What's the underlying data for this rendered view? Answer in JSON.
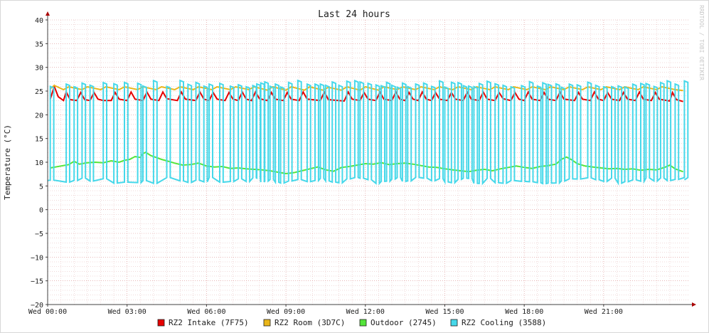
{
  "chart_data": {
    "type": "line",
    "title": "Last 24 hours",
    "ylabel": "Temperature (°C)",
    "xlabel": "",
    "watermark": "RRDTOOL / TOBI OETIKER",
    "ylim": [
      -20,
      40
    ],
    "xlim_hours": [
      0,
      24.2
    ],
    "y_ticks": [
      -20,
      -15,
      -10,
      -5,
      0,
      5,
      10,
      15,
      20,
      25,
      30,
      35,
      40
    ],
    "y_tick_labels": [
      "−20",
      "−15",
      "−10",
      "−5",
      "0",
      "5",
      "10",
      "15",
      "20",
      "25",
      "30",
      "35",
      "40"
    ],
    "x_ticks_hours": [
      0,
      3,
      6,
      9,
      12,
      15,
      18,
      21
    ],
    "x_tick_labels": [
      "Wed 00:00",
      "Wed 03:00",
      "Wed 06:00",
      "Wed 09:00",
      "Wed 12:00",
      "Wed 15:00",
      "Wed 18:00",
      "Wed 21:00"
    ],
    "grid": true,
    "legend_position": "bottom",
    "colors": {
      "grid_minor": "#e2b4b4",
      "grid_major": "#d98c8c",
      "axis": "#404040",
      "arrow": "#aa0000",
      "frame": "#d8d8d8",
      "watermark": "#c8c8c8"
    },
    "series": [
      {
        "name": "RZ2 Intake (7F75)",
        "color": "#e60000",
        "points": [
          [
            0.1,
            23.3
          ],
          [
            0.25,
            26
          ],
          [
            0.4,
            23.8
          ],
          [
            0.6,
            23.0
          ],
          [
            0.7,
            24.8
          ],
          [
            0.85,
            23.2
          ],
          [
            1.1,
            23.0
          ],
          [
            1.25,
            24.7
          ],
          [
            1.4,
            23.2
          ],
          [
            1.6,
            23.0
          ],
          [
            1.75,
            24.7
          ],
          [
            1.9,
            23.3
          ],
          [
            2.1,
            23.0
          ],
          [
            2.4,
            23.0
          ],
          [
            2.55,
            24.7
          ],
          [
            2.7,
            23.3
          ],
          [
            3.0,
            23.0
          ],
          [
            3.15,
            24.8
          ],
          [
            3.3,
            23.3
          ],
          [
            3.6,
            23.0
          ],
          [
            3.75,
            24.8
          ],
          [
            3.9,
            23.3
          ],
          [
            4.2,
            23.0
          ],
          [
            4.35,
            24.8
          ],
          [
            4.5,
            23.4
          ],
          [
            4.9,
            23.0
          ],
          [
            5.05,
            24.8
          ],
          [
            5.2,
            23.3
          ],
          [
            5.6,
            23.0
          ],
          [
            5.75,
            24.8
          ],
          [
            5.9,
            23.3
          ],
          [
            6.1,
            23.0
          ],
          [
            6.25,
            24.7
          ],
          [
            6.4,
            23.3
          ],
          [
            6.7,
            23.0
          ],
          [
            6.85,
            24.7
          ],
          [
            7.0,
            23.3
          ],
          [
            7.2,
            23.0
          ],
          [
            7.35,
            24.8
          ],
          [
            7.5,
            23.3
          ],
          [
            7.7,
            23.0
          ],
          [
            7.85,
            24.8
          ],
          [
            8.0,
            23.4
          ],
          [
            8.3,
            23.0
          ],
          [
            8.45,
            24.7
          ],
          [
            8.6,
            23.3
          ],
          [
            8.9,
            23.0
          ],
          [
            9.05,
            24.7
          ],
          [
            9.2,
            23.3
          ],
          [
            9.5,
            23.0
          ],
          [
            9.65,
            24.8
          ],
          [
            9.8,
            23.3
          ],
          [
            10.3,
            23.0
          ],
          [
            10.45,
            24.8
          ],
          [
            10.6,
            23.2
          ],
          [
            11.2,
            22.9
          ],
          [
            11.35,
            24.8
          ],
          [
            11.5,
            23.3
          ],
          [
            11.8,
            23.0
          ],
          [
            11.95,
            24.7
          ],
          [
            12.1,
            23.3
          ],
          [
            12.4,
            23.0
          ],
          [
            12.55,
            24.8
          ],
          [
            12.7,
            23.3
          ],
          [
            13.0,
            23.0
          ],
          [
            13.15,
            24.8
          ],
          [
            13.3,
            23.3
          ],
          [
            13.5,
            23.0
          ],
          [
            13.65,
            24.7
          ],
          [
            13.8,
            23.3
          ],
          [
            14.0,
            23.0
          ],
          [
            14.15,
            24.8
          ],
          [
            14.3,
            23.3
          ],
          [
            14.5,
            23.0
          ],
          [
            14.65,
            24.7
          ],
          [
            14.8,
            23.3
          ],
          [
            15.1,
            23.0
          ],
          [
            15.25,
            24.7
          ],
          [
            15.4,
            23.3
          ],
          [
            15.7,
            23.0
          ],
          [
            15.85,
            24.8
          ],
          [
            16.0,
            23.3
          ],
          [
            16.3,
            23.0
          ],
          [
            16.45,
            24.8
          ],
          [
            16.6,
            23.3
          ],
          [
            16.9,
            23.0
          ],
          [
            17.05,
            24.7
          ],
          [
            17.2,
            23.4
          ],
          [
            17.5,
            23.0
          ],
          [
            17.65,
            24.7
          ],
          [
            17.8,
            23.3
          ],
          [
            18.0,
            23.0
          ],
          [
            18.15,
            24.8
          ],
          [
            18.3,
            23.3
          ],
          [
            18.6,
            23.0
          ],
          [
            18.75,
            24.7
          ],
          [
            18.9,
            23.3
          ],
          [
            19.2,
            23.0
          ],
          [
            19.35,
            24.8
          ],
          [
            19.5,
            23.3
          ],
          [
            19.9,
            23.0
          ],
          [
            20.05,
            24.7
          ],
          [
            20.2,
            23.3
          ],
          [
            20.5,
            23.0
          ],
          [
            20.65,
            24.8
          ],
          [
            20.8,
            23.3
          ],
          [
            21.0,
            23.0
          ],
          [
            21.15,
            24.7
          ],
          [
            21.3,
            23.3
          ],
          [
            21.6,
            23.0
          ],
          [
            21.75,
            24.7
          ],
          [
            21.9,
            23.3
          ],
          [
            22.2,
            23.0
          ],
          [
            22.35,
            24.8
          ],
          [
            22.5,
            23.3
          ],
          [
            22.8,
            23.0
          ],
          [
            22.95,
            24.7
          ],
          [
            23.1,
            23.3
          ],
          [
            23.5,
            22.9
          ],
          [
            23.6,
            24.7
          ],
          [
            23.75,
            23.2
          ],
          [
            24.0,
            22.8
          ]
        ]
      },
      {
        "name": "RZ2 Room (3D7C)",
        "color": "#eab619",
        "points": [
          [
            0.1,
            25.5
          ],
          [
            0.25,
            26.2
          ],
          [
            0.6,
            25.3
          ],
          [
            0.8,
            25.9
          ],
          [
            1.3,
            25.3
          ],
          [
            1.5,
            25.9
          ],
          [
            2.0,
            25.3
          ],
          [
            2.2,
            25.9
          ],
          [
            2.7,
            25.3
          ],
          [
            2.9,
            25.9
          ],
          [
            3.4,
            25.3
          ],
          [
            3.6,
            25.9
          ],
          [
            4.1,
            25.3
          ],
          [
            4.3,
            25.9
          ],
          [
            4.8,
            25.3
          ],
          [
            5.0,
            25.9
          ],
          [
            5.5,
            25.3
          ],
          [
            5.7,
            25.9
          ],
          [
            6.2,
            25.3
          ],
          [
            6.4,
            25.9
          ],
          [
            6.9,
            25.3
          ],
          [
            7.1,
            25.9
          ],
          [
            7.6,
            25.3
          ],
          [
            7.8,
            25.9
          ],
          [
            8.3,
            25.2
          ],
          [
            8.5,
            25.9
          ],
          [
            9.0,
            25.2
          ],
          [
            9.2,
            25.9
          ],
          [
            9.7,
            25.2
          ],
          [
            9.9,
            25.9
          ],
          [
            10.4,
            25.2
          ],
          [
            10.6,
            25.8
          ],
          [
            11.1,
            25.2
          ],
          [
            11.3,
            25.9
          ],
          [
            11.8,
            25.2
          ],
          [
            12.0,
            25.9
          ],
          [
            12.5,
            25.2
          ],
          [
            12.7,
            25.9
          ],
          [
            13.2,
            25.3
          ],
          [
            13.4,
            25.9
          ],
          [
            13.9,
            25.3
          ],
          [
            14.1,
            25.9
          ],
          [
            14.6,
            25.3
          ],
          [
            14.8,
            25.9
          ],
          [
            15.3,
            25.3
          ],
          [
            15.5,
            25.9
          ],
          [
            16.0,
            25.3
          ],
          [
            16.2,
            25.9
          ],
          [
            16.7,
            25.3
          ],
          [
            16.9,
            25.9
          ],
          [
            17.4,
            25.3
          ],
          [
            17.6,
            25.9
          ],
          [
            18.1,
            25.3
          ],
          [
            18.3,
            25.9
          ],
          [
            18.8,
            25.3
          ],
          [
            19.0,
            25.9
          ],
          [
            19.5,
            25.3
          ],
          [
            19.7,
            25.9
          ],
          [
            20.2,
            25.3
          ],
          [
            20.4,
            25.9
          ],
          [
            20.9,
            25.3
          ],
          [
            21.1,
            25.9
          ],
          [
            21.6,
            25.3
          ],
          [
            21.8,
            25.9
          ],
          [
            22.3,
            25.3
          ],
          [
            22.5,
            25.9
          ],
          [
            23.0,
            25.3
          ],
          [
            23.2,
            25.9
          ],
          [
            23.7,
            25.3
          ],
          [
            24.0,
            25.1
          ]
        ]
      },
      {
        "name": "Outdoor (2745)",
        "color": "#54e53a",
        "points": [
          [
            0.1,
            8.8
          ],
          [
            0.5,
            9.2
          ],
          [
            0.8,
            9.5
          ],
          [
            1.0,
            10.2
          ],
          [
            1.2,
            9.6
          ],
          [
            1.5,
            9.9
          ],
          [
            1.8,
            10.0
          ],
          [
            2.1,
            9.9
          ],
          [
            2.4,
            10.3
          ],
          [
            2.7,
            10.0
          ],
          [
            2.9,
            10.4
          ],
          [
            3.1,
            10.6
          ],
          [
            3.3,
            11.2
          ],
          [
            3.5,
            11.0
          ],
          [
            3.6,
            11.8
          ],
          [
            3.7,
            12.1
          ],
          [
            3.9,
            11.4
          ],
          [
            4.1,
            11.0
          ],
          [
            4.3,
            10.6
          ],
          [
            4.5,
            10.3
          ],
          [
            4.8,
            9.8
          ],
          [
            5.1,
            9.4
          ],
          [
            5.4,
            9.5
          ],
          [
            5.7,
            9.8
          ],
          [
            6.0,
            9.2
          ],
          [
            6.3,
            9.0
          ],
          [
            6.6,
            9.1
          ],
          [
            6.9,
            8.7
          ],
          [
            7.2,
            8.8
          ],
          [
            7.5,
            8.6
          ],
          [
            7.8,
            8.5
          ],
          [
            8.1,
            8.4
          ],
          [
            8.4,
            8.2
          ],
          [
            8.7,
            7.9
          ],
          [
            9.0,
            7.6
          ],
          [
            9.3,
            7.8
          ],
          [
            9.6,
            8.2
          ],
          [
            9.9,
            8.6
          ],
          [
            10.2,
            9.0
          ],
          [
            10.5,
            8.4
          ],
          [
            10.8,
            8.1
          ],
          [
            11.1,
            8.9
          ],
          [
            11.4,
            9.1
          ],
          [
            11.7,
            9.4
          ],
          [
            12.0,
            9.7
          ],
          [
            12.3,
            9.6
          ],
          [
            12.6,
            9.9
          ],
          [
            12.9,
            9.5
          ],
          [
            13.2,
            9.7
          ],
          [
            13.5,
            9.8
          ],
          [
            13.8,
            9.6
          ],
          [
            14.1,
            9.3
          ],
          [
            14.4,
            9.0
          ],
          [
            14.7,
            8.9
          ],
          [
            15.0,
            8.6
          ],
          [
            15.3,
            8.4
          ],
          [
            15.6,
            8.2
          ],
          [
            15.9,
            8.0
          ],
          [
            16.2,
            8.3
          ],
          [
            16.5,
            8.5
          ],
          [
            16.8,
            8.2
          ],
          [
            17.1,
            8.6
          ],
          [
            17.4,
            8.9
          ],
          [
            17.7,
            9.2
          ],
          [
            18.0,
            8.9
          ],
          [
            18.3,
            8.7
          ],
          [
            18.6,
            9.1
          ],
          [
            18.9,
            9.3
          ],
          [
            19.2,
            9.6
          ],
          [
            19.4,
            10.6
          ],
          [
            19.6,
            11.1
          ],
          [
            19.8,
            10.5
          ],
          [
            20.0,
            9.7
          ],
          [
            20.3,
            9.2
          ],
          [
            20.6,
            9.0
          ],
          [
            20.9,
            8.8
          ],
          [
            21.2,
            8.6
          ],
          [
            21.5,
            8.7
          ],
          [
            21.8,
            8.5
          ],
          [
            22.1,
            8.6
          ],
          [
            22.4,
            8.3
          ],
          [
            22.7,
            8.5
          ],
          [
            23.0,
            8.4
          ],
          [
            23.3,
            8.9
          ],
          [
            23.5,
            9.4
          ],
          [
            23.7,
            8.6
          ],
          [
            24.0,
            8.0
          ]
        ]
      },
      {
        "name": "RZ2 Cooling (3588)",
        "color": "#46d8ea",
        "spikes": [
          0.1,
          0.7,
          1.0,
          1.3,
          1.6,
          2.1,
          2.5,
          2.9,
          3.4,
          3.6,
          4.0,
          4.5,
          5.0,
          5.3,
          5.6,
          5.9,
          6.1,
          6.5,
          6.9,
          7.2,
          7.5,
          7.75,
          7.9,
          8.05,
          8.2,
          8.4,
          8.6,
          8.8,
          9.1,
          9.45,
          9.8,
          10.1,
          10.3,
          10.5,
          10.75,
          11.0,
          11.3,
          11.6,
          11.8,
          12.1,
          12.4,
          12.6,
          12.8,
          13.0,
          13.2,
          13.4,
          13.6,
          13.9,
          14.2,
          14.5,
          14.8,
          15.0,
          15.25,
          15.5,
          15.7,
          15.9,
          16.1,
          16.3,
          16.6,
          16.9,
          17.2,
          17.5,
          17.9,
          18.2,
          18.5,
          18.7,
          18.9,
          19.2,
          19.4,
          19.7,
          20.0,
          20.4,
          20.7,
          21.0,
          21.3,
          21.55,
          21.8,
          22.1,
          22.4,
          22.6,
          22.9,
          23.15,
          23.4,
          23.7,
          24.05
        ],
        "base_range": [
          5.5,
          6.8
        ],
        "peak_range": [
          25.8,
          27.3
        ],
        "pulse_width_hours": 0.13
      }
    ]
  }
}
